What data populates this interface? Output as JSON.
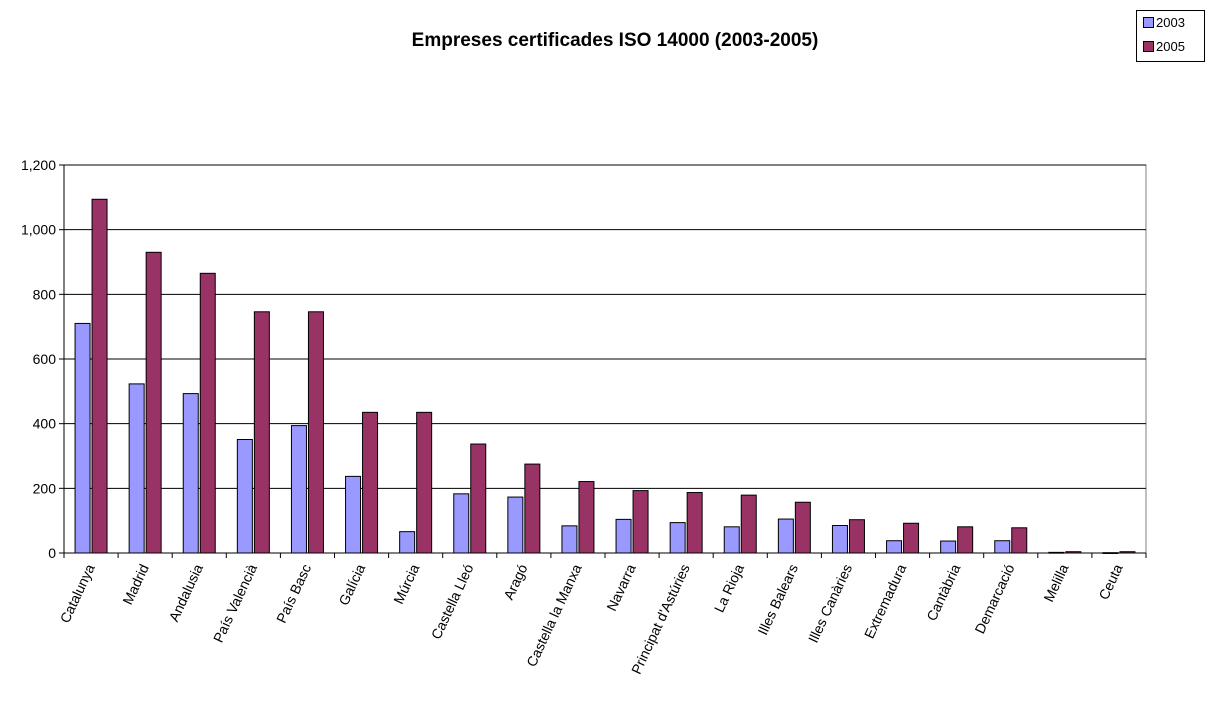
{
  "colors": {
    "series_2003": "#9999FF",
    "series_2005": "#993366",
    "axis": "#000000",
    "grid": "#000000",
    "background": "#FFFFFF"
  },
  "chart_data": {
    "type": "bar",
    "title": "Empreses certificades ISO 14000 (2003-2005)",
    "xlabel": "",
    "ylabel": "",
    "ylim": [
      0,
      1200
    ],
    "yticks": [
      0,
      200,
      400,
      600,
      800,
      1000,
      1200
    ],
    "ytick_labels": [
      "0",
      "200",
      "400",
      "600",
      "800",
      "1,000",
      "1,200"
    ],
    "grid": true,
    "legend_position": "top-right",
    "categories": [
      "Catalunya",
      "Madrid",
      "Andalusia",
      "País Valencià",
      "País Basc",
      "Galícia",
      "Múrcia",
      "Castella Lleó",
      "Aragó",
      "Castella la Manxa",
      "Navarra",
      "Principat d'Astúries",
      "La Rioja",
      "Illes Balears",
      "Illes Canàries",
      "Extremadura",
      "Cantàbria",
      "Demarcació",
      "Melilla",
      "Ceuta"
    ],
    "series": [
      {
        "name": "2003",
        "values": [
          710,
          523,
          493,
          351,
          394,
          237,
          66,
          183,
          173,
          84,
          104,
          94,
          81,
          105,
          85,
          38,
          37,
          38,
          2,
          1
        ]
      },
      {
        "name": "2005",
        "values": [
          1094,
          930,
          865,
          746,
          746,
          435,
          435,
          337,
          275,
          221,
          193,
          187,
          179,
          157,
          103,
          92,
          81,
          78,
          4,
          4
        ]
      }
    ]
  }
}
